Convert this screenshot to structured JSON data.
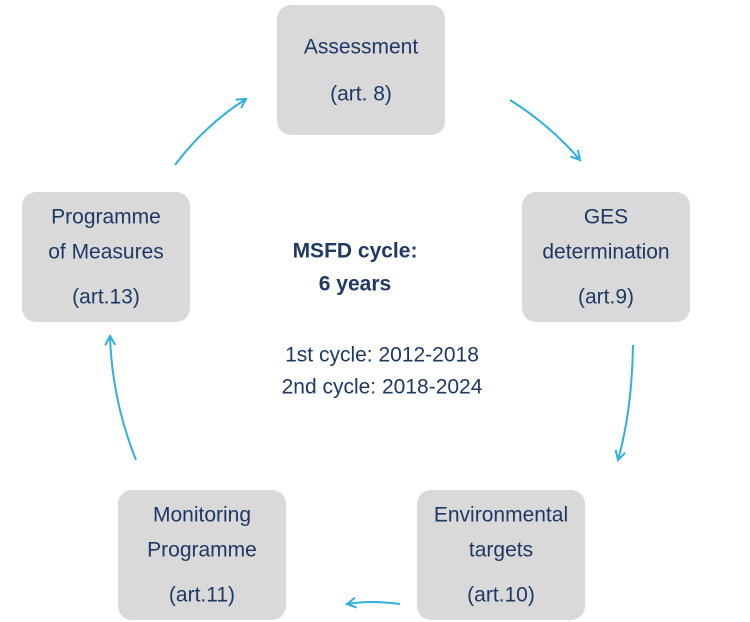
{
  "nodes": [
    {
      "lines": [
        "Assessment"
      ],
      "ref": "(art. 8)"
    },
    {
      "lines": [
        "GES",
        "determination"
      ],
      "ref": "(art.9)"
    },
    {
      "lines": [
        "Environmental",
        "targets"
      ],
      "ref": "(art.10)"
    },
    {
      "lines": [
        "Monitoring",
        "Programme"
      ],
      "ref": "(art.11)"
    },
    {
      "lines": [
        "Programme",
        "of Measures"
      ],
      "ref": "(art.13)"
    }
  ],
  "center": {
    "title": [
      "MSFD cycle:",
      "6 years"
    ],
    "cycles": [
      "1st cycle: 2012-2018",
      "2nd cycle: 2018-2024"
    ]
  }
}
